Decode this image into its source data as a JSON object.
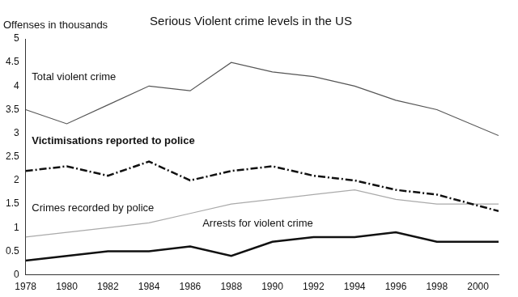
{
  "chart_data": {
    "type": "line",
    "title": "Serious Violent crime levels in the US",
    "y_label": "Offenses in thousands",
    "x": [
      1978,
      1980,
      1982,
      1984,
      1986,
      1988,
      1990,
      1992,
      1994,
      1996,
      1998,
      2001
    ],
    "xlim": [
      1978,
      2001
    ],
    "xticks": [
      1978,
      1980,
      1982,
      1984,
      1986,
      1988,
      1990,
      1992,
      1994,
      1996,
      1998,
      2000
    ],
    "ylim": [
      0,
      5
    ],
    "yticks": [
      0,
      0.5,
      1,
      1.5,
      2,
      2.5,
      3,
      3.5,
      4,
      4.5,
      5
    ],
    "grid": false,
    "series": [
      {
        "name": "Total violent crime",
        "color": "#555555",
        "line_style": "solid",
        "values": [
          3.5,
          3.2,
          3.6,
          4.0,
          3.9,
          4.5,
          4.3,
          4.2,
          4.0,
          3.7,
          3.5,
          2.95
        ]
      },
      {
        "name": "Victimisations reported to police",
        "color": "#111111",
        "line_style": "dashdot",
        "values": [
          2.2,
          2.3,
          2.1,
          2.4,
          2.0,
          2.2,
          2.3,
          2.1,
          2.0,
          1.8,
          1.7,
          1.35
        ]
      },
      {
        "name": "Crimes recorded by police",
        "color": "#aaaaaa",
        "line_style": "solid",
        "values": [
          0.8,
          0.9,
          1.0,
          1.1,
          1.3,
          1.5,
          1.6,
          1.7,
          1.8,
          1.6,
          1.5,
          1.5
        ]
      },
      {
        "name": "Arrests for violent crime",
        "color": "#111111",
        "line_style": "solid",
        "values": [
          0.3,
          0.4,
          0.5,
          0.5,
          0.6,
          0.4,
          0.7,
          0.8,
          0.8,
          0.9,
          0.7,
          0.7
        ]
      }
    ]
  }
}
